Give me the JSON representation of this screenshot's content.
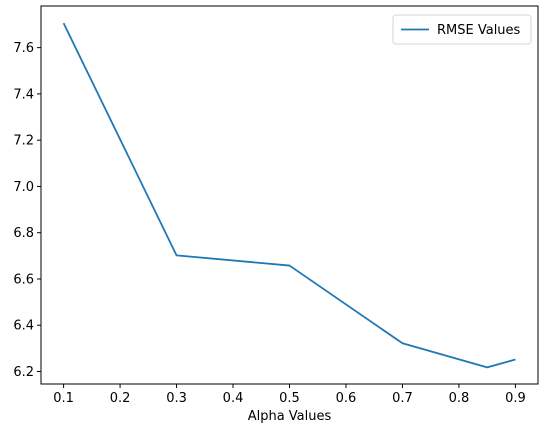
{
  "chart_data": {
    "type": "line",
    "title": "",
    "xlabel": "Alpha Values",
    "ylabel": "",
    "xlim": [
      0.06,
      0.94
    ],
    "ylim": [
      6.146,
      7.78
    ],
    "xticks": [
      0.1,
      0.2,
      0.3,
      0.4,
      0.5,
      0.6,
      0.7,
      0.8,
      0.9
    ],
    "yticks": [
      6.2,
      6.4,
      6.6,
      6.8,
      7.0,
      7.2,
      7.4,
      7.6
    ],
    "grid": false,
    "legend_position": "top-right",
    "series": [
      {
        "name": "RMSE Values",
        "color": "#1f77b4",
        "x": [
          0.1,
          0.3,
          0.5,
          0.7,
          0.85,
          0.9
        ],
        "y": [
          7.706,
          6.702,
          6.658,
          6.322,
          6.218,
          6.252
        ]
      }
    ]
  }
}
